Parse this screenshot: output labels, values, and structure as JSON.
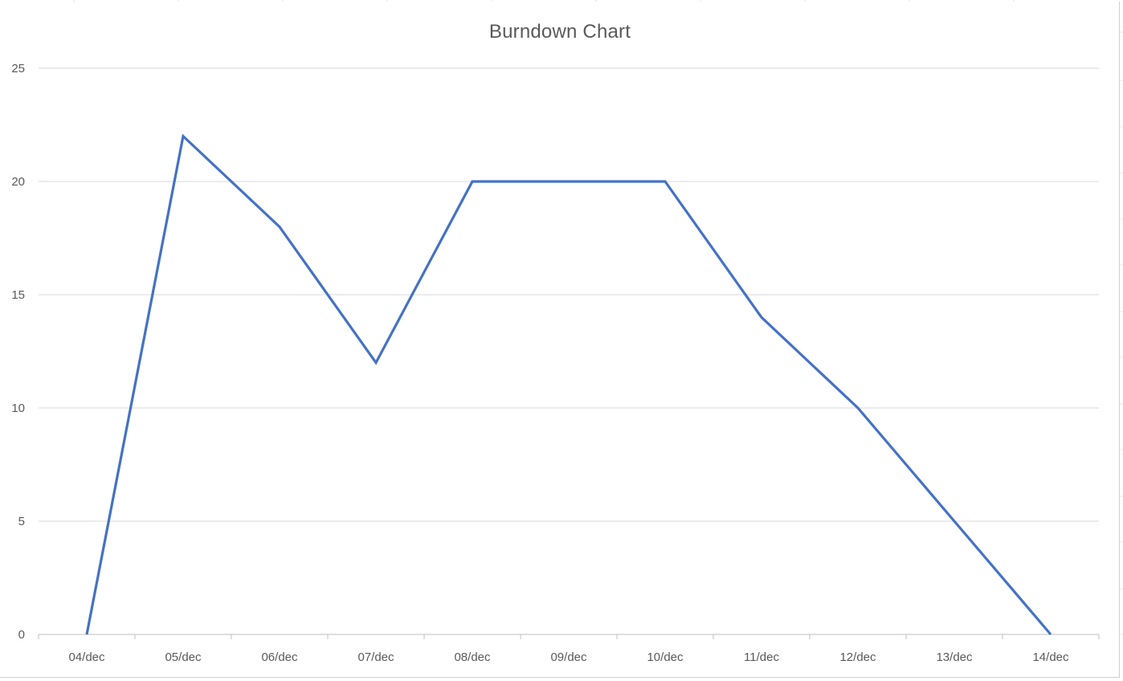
{
  "chart_data": {
    "type": "line",
    "title": "Burndown Chart",
    "xlabel": "",
    "ylabel": "",
    "categories": [
      "04/dec",
      "05/dec",
      "06/dec",
      "07/dec",
      "08/dec",
      "09/dec",
      "10/dec",
      "11/dec",
      "12/dec",
      "13/dec",
      "14/dec"
    ],
    "series": [
      {
        "values": [
          0,
          22,
          18,
          12,
          20,
          20,
          20,
          14,
          10,
          5,
          0
        ],
        "color": "#4472C4"
      }
    ],
    "ylim": [
      0,
      25
    ],
    "yticks": [
      0,
      5,
      10,
      15,
      20,
      25
    ],
    "grid": true,
    "legend": "none"
  },
  "colors": {
    "gridline": "#d9d9d9",
    "axis": "#bfbfbf",
    "text": "#595959",
    "sheet_grid": "#e2e2e2"
  }
}
